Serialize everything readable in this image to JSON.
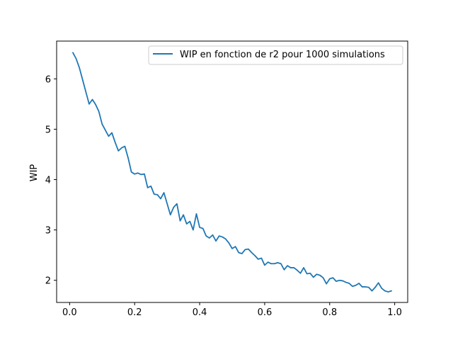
{
  "chart_data": {
    "type": "line",
    "title": "",
    "xlabel": "",
    "ylabel": "WIP",
    "xlim": [
      -0.04,
      1.04
    ],
    "ylim": [
      1.56,
      6.75
    ],
    "xticks": [
      0.0,
      0.2,
      0.4,
      0.6,
      0.8,
      1.0
    ],
    "xtick_labels": [
      "0.0",
      "0.2",
      "0.4",
      "0.6",
      "0.8",
      "1.0"
    ],
    "yticks": [
      2,
      3,
      4,
      5,
      6
    ],
    "ytick_labels": [
      "2",
      "3",
      "4",
      "5",
      "6"
    ],
    "grid": false,
    "legend_position": "top-right",
    "series": [
      {
        "name": "WIP en fonction de r2 pour 1000 simulations",
        "color": "#1f77b4",
        "x": [
          0.01,
          0.02,
          0.03,
          0.04,
          0.05,
          0.06,
          0.07,
          0.08,
          0.09,
          0.1,
          0.11,
          0.12,
          0.13,
          0.14,
          0.15,
          0.16,
          0.17,
          0.18,
          0.19,
          0.2,
          0.21,
          0.22,
          0.23,
          0.24,
          0.25,
          0.26,
          0.27,
          0.28,
          0.29,
          0.3,
          0.31,
          0.32,
          0.33,
          0.34,
          0.35,
          0.36,
          0.37,
          0.38,
          0.39,
          0.4,
          0.41,
          0.42,
          0.43,
          0.44,
          0.45,
          0.46,
          0.47,
          0.48,
          0.49,
          0.5,
          0.51,
          0.52,
          0.53,
          0.54,
          0.55,
          0.56,
          0.57,
          0.58,
          0.59,
          0.6,
          0.61,
          0.62,
          0.63,
          0.64,
          0.65,
          0.66,
          0.67,
          0.68,
          0.69,
          0.7,
          0.71,
          0.72,
          0.73,
          0.74,
          0.75,
          0.76,
          0.77,
          0.78,
          0.79,
          0.8,
          0.81,
          0.82,
          0.83,
          0.84,
          0.85,
          0.86,
          0.87,
          0.88,
          0.89,
          0.9,
          0.91,
          0.92,
          0.93,
          0.94,
          0.95,
          0.96,
          0.97,
          0.98,
          0.99
        ],
        "y": [
          6.52,
          6.4,
          6.22,
          5.98,
          5.74,
          5.5,
          5.59,
          5.49,
          5.35,
          5.1,
          4.98,
          4.86,
          4.93,
          4.74,
          4.57,
          4.63,
          4.66,
          4.43,
          4.15,
          4.11,
          4.13,
          4.1,
          4.11,
          3.84,
          3.87,
          3.71,
          3.7,
          3.62,
          3.74,
          3.52,
          3.3,
          3.45,
          3.52,
          3.18,
          3.3,
          3.12,
          3.17,
          3.0,
          3.32,
          3.05,
          3.03,
          2.88,
          2.84,
          2.9,
          2.78,
          2.88,
          2.86,
          2.82,
          2.74,
          2.63,
          2.67,
          2.55,
          2.53,
          2.61,
          2.62,
          2.55,
          2.49,
          2.42,
          2.44,
          2.3,
          2.36,
          2.33,
          2.33,
          2.35,
          2.33,
          2.21,
          2.29,
          2.25,
          2.25,
          2.2,
          2.14,
          2.25,
          2.13,
          2.14,
          2.06,
          2.12,
          2.1,
          2.05,
          1.93,
          2.03,
          2.05,
          1.98,
          2.0,
          1.99,
          1.96,
          1.94,
          1.88,
          1.9,
          1.94,
          1.87,
          1.87,
          1.86,
          1.79,
          1.86,
          1.95,
          1.84,
          1.79,
          1.77,
          1.79
        ]
      }
    ]
  }
}
